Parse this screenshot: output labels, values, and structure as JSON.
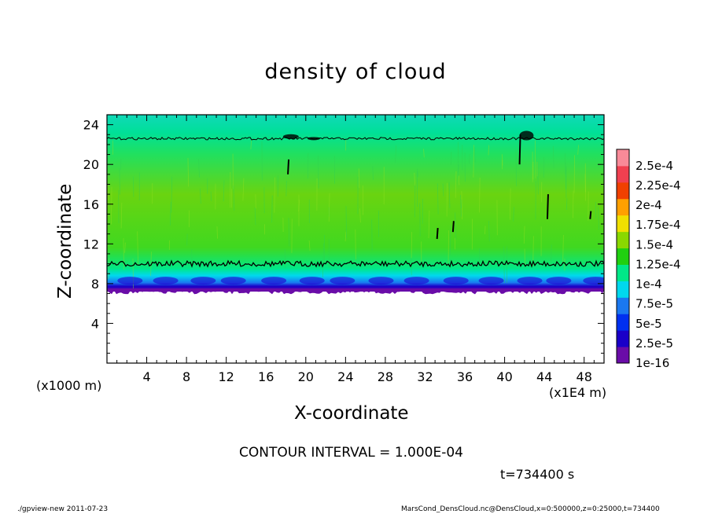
{
  "chart_data": {
    "type": "heatmap",
    "title": "density of cloud",
    "xlabel": "X-coordinate",
    "ylabel": "Z-coordinate",
    "x_unit_label": "(x1E4 m)",
    "y_unit_label": "(x1000 m)",
    "xlim": [
      0,
      50
    ],
    "ylim": [
      0,
      25
    ],
    "x_ticks": [
      "4",
      "8",
      "12",
      "16",
      "20",
      "24",
      "28",
      "32",
      "36",
      "40",
      "44",
      "48"
    ],
    "y_ticks": [
      "4",
      "8",
      "12",
      "16",
      "20",
      "24"
    ],
    "colorbar": {
      "labels": [
        "1e-16",
        "2.5e-5",
        "5e-5",
        "7.5e-5",
        "1e-4",
        "1.25e-4",
        "1.5e-4",
        "1.75e-4",
        "2e-4",
        "2.25e-4",
        "2.5e-4"
      ],
      "colors": [
        "#6a0ca8",
        "#1a00c8",
        "#0030f0",
        "#1a78f0",
        "#00d8ee",
        "#00e888",
        "#20d010",
        "#8ad800",
        "#f0e000",
        "#ffa000",
        "#f04000",
        "#f04050",
        "#f88a98"
      ]
    },
    "profile": [
      {
        "z": 7.2,
        "value": 2.5e-05
      },
      {
        "z": 8,
        "value": 4.5e-05
      },
      {
        "z": 9,
        "value": 6e-05
      },
      {
        "z": 10,
        "value": 8e-05
      },
      {
        "z": 12,
        "value": 0.00012
      },
      {
        "z": 16,
        "value": 0.00014
      },
      {
        "z": 20,
        "value": 0.00013
      },
      {
        "z": 22.5,
        "value": 0.0001
      },
      {
        "z": 25,
        "value": 9e-05
      }
    ],
    "contour_levels": [
      0.0001
    ],
    "contour_z": [
      10,
      22.6
    ],
    "contour_interval_label": "CONTOUR INTERVAL = 1.000E-04",
    "time_label": "t=734400 s"
  },
  "footer": {
    "left": "./gpview-new   2011-07-23",
    "right": "MarsCond_DensCloud.nc@DensCloud,x=0:500000,z=0:25000,t=734400"
  }
}
